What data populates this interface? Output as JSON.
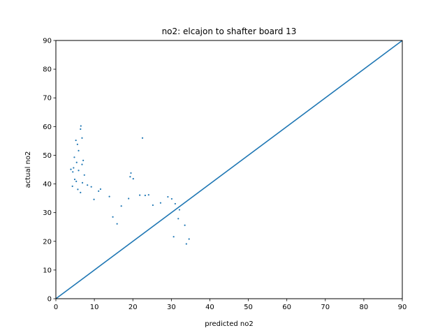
{
  "chart_data": {
    "type": "scatter",
    "title": "no2: elcajon to shafter board 13",
    "xlabel": "predicted no2",
    "ylabel": "actual no2",
    "xlim": [
      0,
      90
    ],
    "ylim": [
      0,
      90
    ],
    "xticks": [
      "0",
      "10",
      "20",
      "30",
      "40",
      "50",
      "60",
      "70",
      "80",
      "90"
    ],
    "yticks": [
      "0",
      "10",
      "20",
      "30",
      "40",
      "50",
      "60",
      "70",
      "80",
      "90"
    ],
    "grid": false,
    "color": "#1f77b4",
    "reference_line": {
      "x": [
        0,
        90
      ],
      "y": [
        0,
        90
      ]
    },
    "series": [
      {
        "points": [
          [
            6.5,
            60.2
          ],
          [
            6.4,
            59.1
          ],
          [
            6.8,
            56.0
          ],
          [
            22.5,
            56.0
          ],
          [
            5.2,
            55.2
          ],
          [
            5.6,
            53.8
          ],
          [
            5.9,
            51.6
          ],
          [
            4.8,
            49.3
          ],
          [
            7.1,
            48.2
          ],
          [
            5.4,
            47.5
          ],
          [
            6.8,
            46.8
          ],
          [
            4.6,
            45.6
          ],
          [
            3.9,
            45.1
          ],
          [
            5.9,
            44.7
          ],
          [
            4.4,
            44.2
          ],
          [
            7.4,
            43.1
          ],
          [
            19.5,
            43.8
          ],
          [
            19.3,
            42.5
          ],
          [
            20.1,
            41.8
          ],
          [
            4.9,
            41.6
          ],
          [
            5.3,
            40.9
          ],
          [
            6.9,
            40.4
          ],
          [
            8.2,
            39.6
          ],
          [
            9.2,
            39.0
          ],
          [
            4.3,
            39.2
          ],
          [
            5.7,
            38.1
          ],
          [
            11.6,
            38.2
          ],
          [
            11.1,
            37.5
          ],
          [
            6.4,
            37.0
          ],
          [
            21.8,
            36.1
          ],
          [
            23.2,
            36.0
          ],
          [
            24.1,
            36.2
          ],
          [
            18.9,
            34.9
          ],
          [
            13.9,
            35.6
          ],
          [
            29.1,
            35.5
          ],
          [
            30.1,
            34.8
          ],
          [
            9.9,
            34.6
          ],
          [
            27.2,
            33.4
          ],
          [
            31.0,
            33.1
          ],
          [
            17.0,
            32.3
          ],
          [
            25.2,
            32.6
          ],
          [
            32.1,
            31.0
          ],
          [
            33.5,
            25.6
          ],
          [
            34.6,
            20.8
          ],
          [
            33.9,
            19.1
          ],
          [
            31.8,
            27.9
          ],
          [
            30.6,
            21.6
          ],
          [
            14.8,
            28.5
          ],
          [
            15.9,
            26.1
          ]
        ]
      }
    ]
  }
}
